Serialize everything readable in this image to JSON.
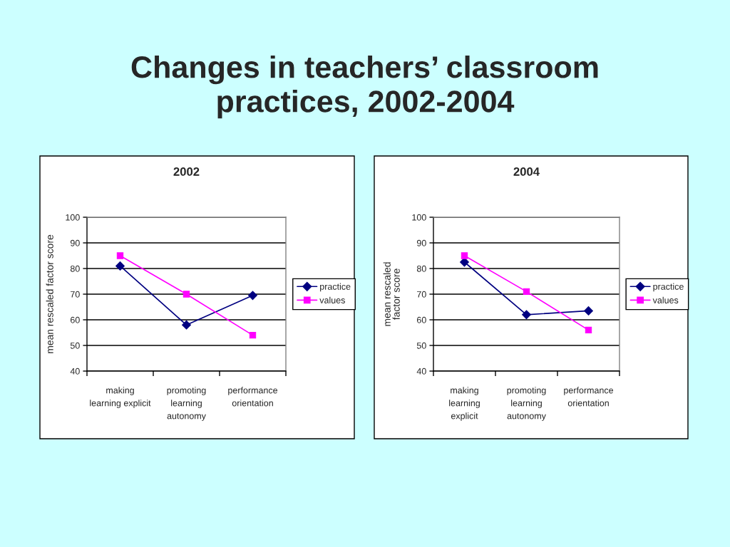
{
  "chart_data": [
    {
      "type": "line",
      "title": "2002",
      "ylabel": "mean rescaled factor score",
      "annotations": [
        "Changes in teachers’ classroom\npractices, 2002-2004"
      ],
      "categories": [
        "making\nlearning explicit",
        "promoting\nlearning\nautonomy",
        "performance\norientation"
      ],
      "series": [
        {
          "name": "practice",
          "color": "#000080",
          "marker": "diamond",
          "values": [
            81,
            58,
            69.5
          ]
        },
        {
          "name": "values",
          "color": "#ff00ff",
          "marker": "square",
          "values": [
            85,
            70,
            54
          ]
        }
      ],
      "ylim": [
        40,
        100
      ],
      "yticks": [
        40,
        50,
        60,
        70,
        80,
        90,
        100
      ],
      "grid": "y",
      "legend": "right"
    },
    {
      "type": "line",
      "title": "2004",
      "ylabel": "mean rescaled\nfactor score",
      "categories": [
        "making\nlearning\nexplicit",
        "promoting\nlearning\nautonomy",
        "performance\norientation"
      ],
      "series": [
        {
          "name": "practice",
          "color": "#000080",
          "marker": "diamond",
          "values": [
            82.5,
            62,
            63.5
          ]
        },
        {
          "name": "values",
          "color": "#ff00ff",
          "marker": "square",
          "values": [
            85,
            71,
            56
          ]
        }
      ],
      "ylim": [
        40,
        100
      ],
      "yticks": [
        40,
        50,
        60,
        70,
        80,
        90,
        100
      ],
      "grid": "y",
      "legend": "right"
    }
  ]
}
